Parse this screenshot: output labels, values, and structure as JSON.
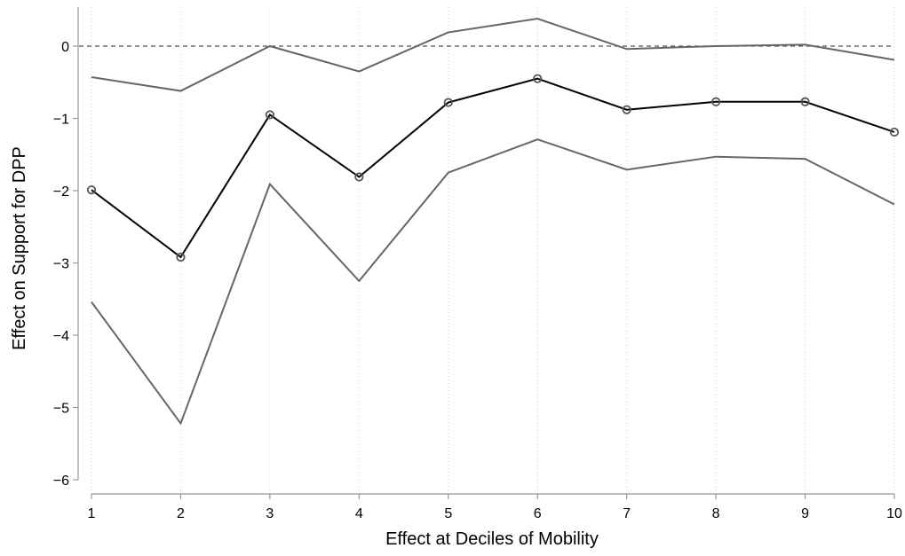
{
  "chart_data": {
    "type": "line",
    "title": "",
    "xlabel": "Effect at Deciles of Mobility",
    "ylabel": "Effect on Support for DPP",
    "x": [
      1,
      2,
      3,
      4,
      5,
      6,
      7,
      8,
      9,
      10
    ],
    "xlim": [
      1,
      10
    ],
    "ylim": [
      -6,
      0.4
    ],
    "xticks": [
      "1",
      "2",
      "3",
      "4",
      "5",
      "6",
      "7",
      "8",
      "9",
      "10"
    ],
    "yticks": [
      {
        "value": 0,
        "label": "0"
      },
      {
        "value": -1,
        "label": "−1"
      },
      {
        "value": -2,
        "label": "−2"
      },
      {
        "value": -3,
        "label": "−3"
      },
      {
        "value": -4,
        "label": "−4"
      },
      {
        "value": -5,
        "label": "−5"
      },
      {
        "value": -6,
        "label": "−6"
      }
    ],
    "reference_line": {
      "y": 0,
      "style": "dashed"
    },
    "grid": {
      "vertical": true,
      "style": "dotted"
    },
    "series": [
      {
        "role": "upper",
        "values": [
          -0.43,
          -0.62,
          0.0,
          -0.35,
          0.19,
          0.38,
          -0.04,
          0.0,
          0.02,
          -0.19
        ],
        "color": "#666666",
        "markers": false
      },
      {
        "role": "estimate",
        "values": [
          -1.99,
          -2.92,
          -0.95,
          -1.81,
          -0.78,
          -0.45,
          -0.88,
          -0.77,
          -0.77,
          -1.19
        ],
        "color": "#000000",
        "markers": true
      },
      {
        "role": "lower",
        "values": [
          -3.54,
          -5.22,
          -1.91,
          -3.25,
          -1.75,
          -1.29,
          -1.71,
          -1.53,
          -1.56,
          -2.19
        ],
        "color": "#666666",
        "markers": false
      }
    ]
  }
}
